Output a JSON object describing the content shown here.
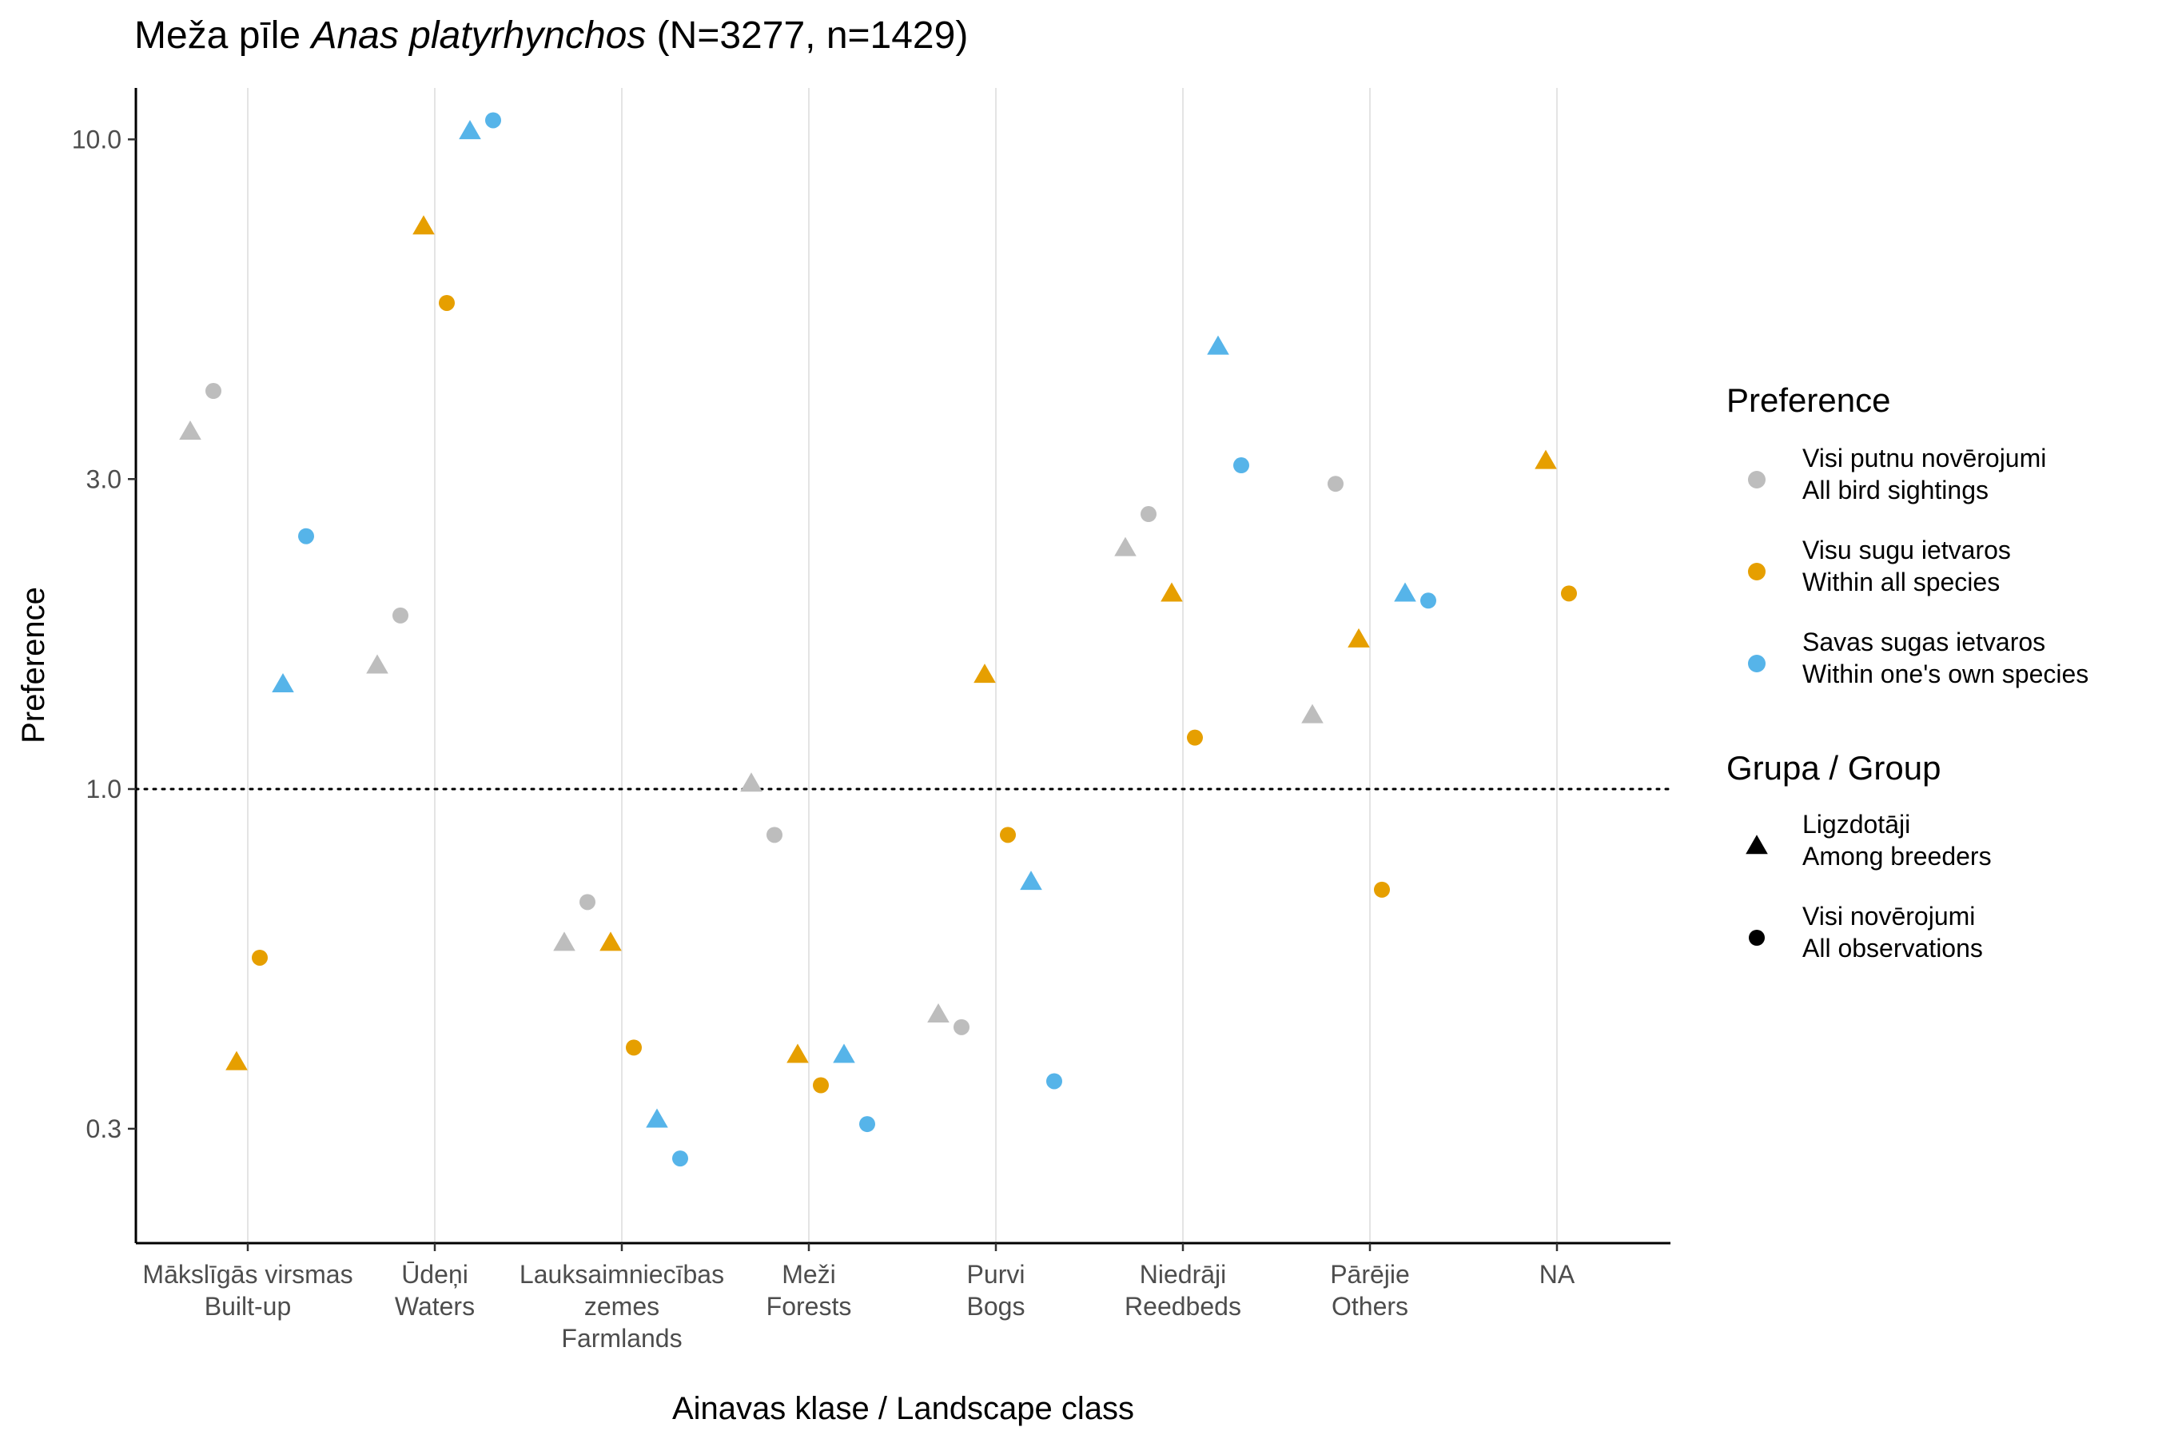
{
  "chart_data": {
    "type": "scatter",
    "title": {
      "prefix": "Meža pīle ",
      "italic": "Anas platyrhynchos",
      "suffix": " (N=3277, n=1429)"
    },
    "xlabel": "Ainavas klase / Landscape class",
    "ylabel": "Preference",
    "y_scale": "log",
    "ylim": [
      0.2,
      12.0
    ],
    "yticks": [
      0.3,
      1.0,
      3.0,
      10.0
    ],
    "ytick_labels": [
      "0.3",
      "1.0",
      "3.0",
      "10.0"
    ],
    "reference_line": 1.0,
    "grid": "vertical major lines at categories",
    "categories": [
      [
        "Mākslīgās virsmas",
        "Built-up"
      ],
      [
        "Ūdeņi",
        "Waters"
      ],
      [
        "Lauksaimniecības",
        "zemes",
        "Farmlands"
      ],
      [
        "Meži",
        "Forests"
      ],
      [
        "Purvi",
        "Bogs"
      ],
      [
        "Niedrāji",
        "Reedbeds"
      ],
      [
        "Pārējie",
        "Others"
      ],
      [
        "NA"
      ]
    ],
    "series": [
      {
        "preference": "Visi putnu novērojumi / All bird sightings",
        "group": "Ligzdotāji / Among breeders",
        "color": "#BDBDBD",
        "shape": "triangle",
        "values": [
          3.55,
          1.55,
          0.58,
          1.02,
          0.45,
          2.35,
          1.3,
          null
        ]
      },
      {
        "preference": "Visi putnu novērojumi / All bird sightings",
        "group": "Visi novērojumi / All observations",
        "color": "#BDBDBD",
        "shape": "circle",
        "values": [
          4.1,
          1.85,
          0.67,
          0.85,
          0.43,
          2.65,
          2.95,
          null
        ]
      },
      {
        "preference": "Visu sugu ietvaros / Within all species",
        "group": "Ligzdotāji / Among breeders",
        "color": "#E69F00",
        "shape": "triangle",
        "values": [
          0.38,
          7.35,
          0.58,
          0.39,
          1.5,
          2.0,
          1.7,
          3.2
        ]
      },
      {
        "preference": "Visu sugu ietvaros / Within all species",
        "group": "Visi novērojumi / All observations",
        "color": "#E69F00",
        "shape": "circle",
        "values": [
          0.55,
          5.6,
          0.4,
          0.35,
          0.85,
          1.2,
          0.7,
          2.0
        ]
      },
      {
        "preference": "Savas sugas ietvaros / Within one's own species",
        "group": "Ligzdotāji / Among breeders",
        "color": "#56B4E9",
        "shape": "triangle",
        "values": [
          1.45,
          10.3,
          0.31,
          0.39,
          0.72,
          4.8,
          2.0,
          null
        ]
      },
      {
        "preference": "Savas sugas ietvaros / Within one's own species",
        "group": "Visi novērojumi / All observations",
        "color": "#56B4E9",
        "shape": "circle",
        "values": [
          2.45,
          10.7,
          0.27,
          0.305,
          0.355,
          3.15,
          1.95,
          null
        ]
      }
    ],
    "legend": {
      "placement": "right",
      "preference_title": "Preference",
      "preference_items": [
        {
          "lines": [
            "Visi putnu novērojumi",
            "All bird sightings"
          ],
          "color": "#BDBDBD"
        },
        {
          "lines": [
            "Visu sugu ietvaros",
            "Within all species"
          ],
          "color": "#E69F00"
        },
        {
          "lines": [
            "Savas sugas ietvaros",
            "Within one's own species"
          ],
          "color": "#56B4E9"
        }
      ],
      "group_title": "Grupa / Group",
      "group_items": [
        {
          "lines": [
            "Ligzdotāji",
            "Among breeders"
          ],
          "shape": "triangle",
          "color": "#000000"
        },
        {
          "lines": [
            "Visi novērojumi",
            "All observations"
          ],
          "shape": "circle",
          "color": "#000000"
        }
      ]
    }
  }
}
